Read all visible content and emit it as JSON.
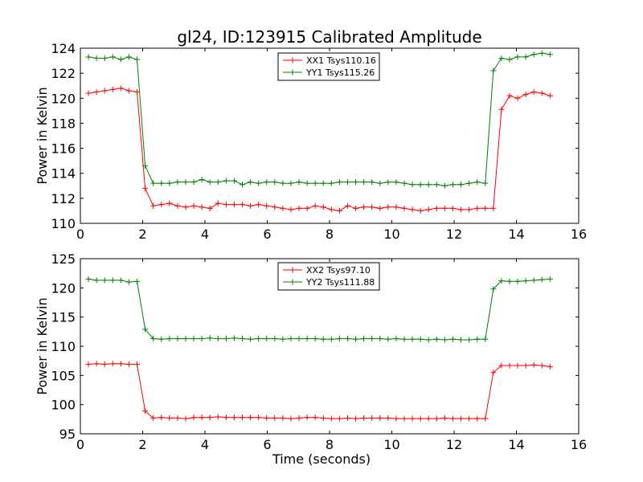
{
  "figure": {
    "title": "gl24, ID:123915 Calibrated Amplitude"
  },
  "colors": {
    "series_red": "#ff0000",
    "series_green": "#008000",
    "axes": "#000000",
    "background": "#ffffff"
  },
  "chart_data": [
    {
      "type": "line",
      "title": "gl24, ID:123915 Calibrated Amplitude",
      "xlabel": "",
      "ylabel": "Power in Kelvin",
      "xlim": [
        0,
        16
      ],
      "ylim": [
        110,
        124
      ],
      "xticks": [
        "0",
        "2",
        "4",
        "6",
        "8",
        "10",
        "12",
        "14",
        "16"
      ],
      "yticks": [
        "110",
        "112",
        "114",
        "116",
        "118",
        "120",
        "122",
        "124"
      ],
      "grid": false,
      "legend_position": "top-center",
      "x": [
        0.26,
        0.52,
        0.78,
        1.04,
        1.3,
        1.56,
        1.82,
        2.08,
        2.34,
        2.6,
        2.86,
        3.12,
        3.38,
        3.64,
        3.9,
        4.16,
        4.42,
        4.68,
        4.94,
        5.2,
        5.46,
        5.72,
        5.98,
        6.24,
        6.5,
        6.76,
        7.02,
        7.28,
        7.54,
        7.8,
        8.06,
        8.32,
        8.58,
        8.84,
        9.1,
        9.36,
        9.62,
        9.88,
        10.14,
        10.4,
        10.66,
        10.92,
        11.18,
        11.44,
        11.7,
        11.96,
        12.22,
        12.48,
        12.74,
        13.0,
        13.26,
        13.52,
        13.78,
        14.04,
        14.3,
        14.56,
        14.82,
        15.08
      ],
      "series": [
        {
          "name": "XX1 Tsys110.16",
          "color": "#ff0000",
          "values": [
            120.4,
            120.5,
            120.6,
            120.7,
            120.8,
            120.6,
            120.5,
            112.8,
            111.4,
            111.5,
            111.6,
            111.4,
            111.3,
            111.4,
            111.3,
            111.2,
            111.6,
            111.5,
            111.5,
            111.5,
            111.4,
            111.5,
            111.4,
            111.3,
            111.2,
            111.1,
            111.2,
            111.2,
            111.4,
            111.3,
            111.1,
            111.0,
            111.4,
            111.2,
            111.3,
            111.3,
            111.2,
            111.3,
            111.3,
            111.2,
            111.1,
            111.0,
            111.1,
            111.2,
            111.2,
            111.2,
            111.1,
            111.1,
            111.2,
            111.2,
            111.2,
            119.1,
            120.2,
            120.0,
            120.3,
            120.5,
            120.4,
            120.2
          ]
        },
        {
          "name": "YY1 Tsys115.26",
          "color": "#008000",
          "values": [
            123.3,
            123.2,
            123.2,
            123.3,
            123.1,
            123.3,
            123.1,
            114.6,
            113.2,
            113.2,
            113.2,
            113.3,
            113.3,
            113.3,
            113.5,
            113.3,
            113.3,
            113.4,
            113.4,
            113.1,
            113.3,
            113.2,
            113.3,
            113.3,
            113.2,
            113.2,
            113.3,
            113.2,
            113.2,
            113.2,
            113.2,
            113.3,
            113.3,
            113.3,
            113.3,
            113.3,
            113.2,
            113.3,
            113.3,
            113.2,
            113.1,
            113.1,
            113.1,
            113.1,
            113.0,
            113.1,
            113.1,
            113.2,
            113.3,
            113.2,
            122.2,
            123.2,
            123.1,
            123.3,
            123.3,
            123.5,
            123.6,
            123.5
          ]
        }
      ]
    },
    {
      "type": "line",
      "title": "",
      "xlabel": "Time (seconds)",
      "ylabel": "Power in Kelvin",
      "xlim": [
        0,
        16
      ],
      "ylim": [
        95,
        125
      ],
      "xticks": [
        "0",
        "2",
        "4",
        "6",
        "8",
        "10",
        "12",
        "14",
        "16"
      ],
      "yticks": [
        "95",
        "100",
        "105",
        "110",
        "115",
        "120",
        "125"
      ],
      "grid": false,
      "legend_position": "top-center",
      "x": [
        0.26,
        0.52,
        0.78,
        1.04,
        1.3,
        1.56,
        1.82,
        2.08,
        2.34,
        2.6,
        2.86,
        3.12,
        3.38,
        3.64,
        3.9,
        4.16,
        4.42,
        4.68,
        4.94,
        5.2,
        5.46,
        5.72,
        5.98,
        6.24,
        6.5,
        6.76,
        7.02,
        7.28,
        7.54,
        7.8,
        8.06,
        8.32,
        8.58,
        8.84,
        9.1,
        9.36,
        9.62,
        9.88,
        10.14,
        10.4,
        10.66,
        10.92,
        11.18,
        11.44,
        11.7,
        11.96,
        12.22,
        12.48,
        12.74,
        13.0,
        13.26,
        13.52,
        13.78,
        14.04,
        14.3,
        14.56,
        14.82,
        15.08
      ],
      "series": [
        {
          "name": "XX2 Tsys97.10",
          "color": "#ff0000",
          "values": [
            106.9,
            107.0,
            106.9,
            107.0,
            107.0,
            106.9,
            106.9,
            98.9,
            97.7,
            97.8,
            97.7,
            97.7,
            97.6,
            97.8,
            97.8,
            97.8,
            97.9,
            97.8,
            97.8,
            97.8,
            97.8,
            97.8,
            97.7,
            97.7,
            97.7,
            97.6,
            97.7,
            97.8,
            97.8,
            97.7,
            97.6,
            97.6,
            97.7,
            97.6,
            97.7,
            97.7,
            97.7,
            97.7,
            97.6,
            97.6,
            97.6,
            97.6,
            97.6,
            97.6,
            97.7,
            97.6,
            97.6,
            97.6,
            97.6,
            97.6,
            105.5,
            106.7,
            106.7,
            106.7,
            106.7,
            106.8,
            106.7,
            106.5
          ]
        },
        {
          "name": "YY2 Tsys111.88",
          "color": "#008000",
          "values": [
            121.5,
            121.3,
            121.3,
            121.3,
            121.3,
            121.0,
            121.1,
            112.9,
            111.3,
            111.2,
            111.3,
            111.3,
            111.3,
            111.3,
            111.3,
            111.4,
            111.3,
            111.3,
            111.4,
            111.3,
            111.2,
            111.3,
            111.3,
            111.3,
            111.2,
            111.3,
            111.3,
            111.3,
            111.3,
            111.2,
            111.2,
            111.3,
            111.3,
            111.2,
            111.3,
            111.3,
            111.3,
            111.2,
            111.3,
            111.2,
            111.2,
            111.2,
            111.1,
            111.2,
            111.1,
            111.2,
            111.1,
            111.1,
            111.2,
            111.2,
            119.8,
            121.2,
            121.1,
            121.1,
            121.2,
            121.3,
            121.4,
            121.5
          ]
        }
      ]
    }
  ]
}
